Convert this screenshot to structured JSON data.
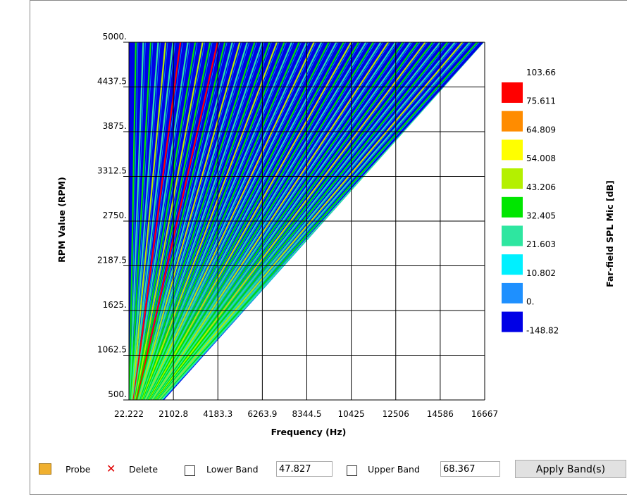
{
  "chart_data": {
    "type": "contour",
    "xlabel": "Frequency (Hz)",
    "ylabel": "RPM Value (RPM)",
    "xlim": [
      22.222,
      16667
    ],
    "ylim": [
      500,
      5000
    ],
    "xticks": [
      22.222,
      2102.8,
      4183.3,
      6263.9,
      8344.5,
      10425,
      12506,
      14586,
      16667
    ],
    "yticks": [
      {
        "value": 500,
        "label": "500."
      },
      1062.5,
      {
        "value": 1625,
        "label": "1625."
      },
      2187.5,
      {
        "value": 2750,
        "label": "2750."
      },
      3312.5,
      {
        "value": 3875,
        "label": "3875."
      },
      4437.5,
      {
        "value": 5000,
        "label": "5000."
      }
    ],
    "grid": true,
    "colorbar": {
      "title": "Far-field SPL Mic [dB]",
      "levels": [
        103.66,
        75.611,
        64.809,
        54.008,
        43.206,
        32.405,
        21.603,
        10.802,
        {
          "value": 0,
          "label": "0."
        },
        -148.82
      ],
      "colors": [
        "#ff0000",
        "#ff8c00",
        "#ffff00",
        "#b4f000",
        "#00e600",
        "#2ee6a0",
        "#00f0ff",
        "#1e90ff",
        "#0000e6"
      ]
    }
  },
  "toolbar": {
    "probe": "Probe",
    "delete": "Delete",
    "lower_band": "Lower Band",
    "lower_value": "47.827",
    "upper_band": "Upper Band",
    "upper_value": "68.367",
    "apply": "Apply Band(s)"
  }
}
